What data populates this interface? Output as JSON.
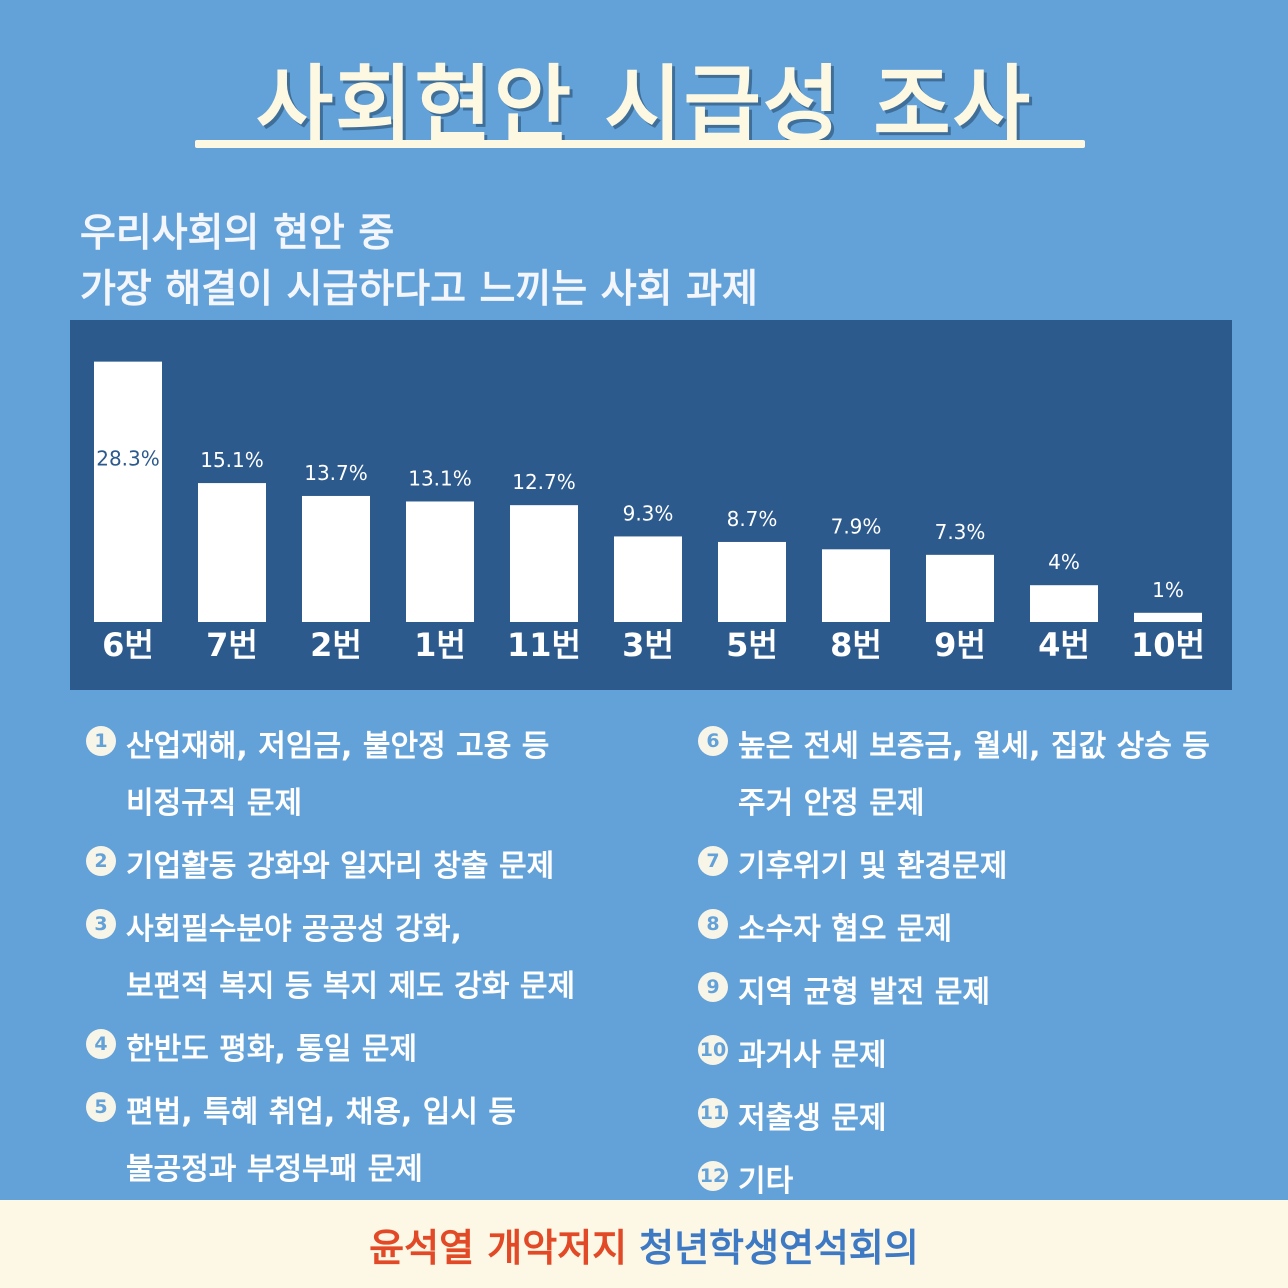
{
  "title": "사회현안 시급성 조사",
  "subtitle": {
    "line1": "우리사회의 현안 중",
    "line2": "가장 해결이 시급하다고 느끼는 사회 과제"
  },
  "colors": {
    "panel": "#63a1d9",
    "chart_bg": "#2d5a8c",
    "bar": "#ffffff",
    "footer_bg": "#fdf8e6",
    "footer_red": "#e24a27",
    "footer_blue": "#3e79c4"
  },
  "chart_data": {
    "type": "bar",
    "categories": [
      "6번",
      "7번",
      "2번",
      "1번",
      "11번",
      "3번",
      "5번",
      "8번",
      "9번",
      "4번",
      "10번"
    ],
    "values": [
      28.3,
      15.1,
      13.7,
      13.1,
      12.7,
      9.3,
      8.7,
      7.9,
      7.3,
      4,
      1
    ],
    "value_labels": [
      "28.3%",
      "15.1%",
      "13.7%",
      "13.1%",
      "12.7%",
      "9.3%",
      "8.7%",
      "7.9%",
      "7.3%",
      "4%",
      "1%"
    ],
    "ylim": [
      0,
      30
    ],
    "grid": false
  },
  "legend": {
    "left": [
      {
        "num": "1",
        "lines": [
          "산업재해, 저임금, 불안정 고용 등",
          "비정규직 문제"
        ]
      },
      {
        "num": "2",
        "lines": [
          "기업활동 강화와 일자리 창출 문제"
        ]
      },
      {
        "num": "3",
        "lines": [
          "사회필수분야 공공성 강화,",
          "보편적 복지 등 복지 제도 강화 문제"
        ]
      },
      {
        "num": "4",
        "lines": [
          "한반도 평화, 통일 문제"
        ]
      },
      {
        "num": "5",
        "lines": [
          "편법, 특혜 취업, 채용, 입시 등",
          "불공정과 부정부패 문제"
        ]
      }
    ],
    "right": [
      {
        "num": "6",
        "lines": [
          "높은 전세 보증금, 월세, 집값 상승 등",
          "주거 안정 문제"
        ]
      },
      {
        "num": "7",
        "lines": [
          "기후위기 및 환경문제"
        ]
      },
      {
        "num": "8",
        "lines": [
          "소수자 혐오 문제"
        ]
      },
      {
        "num": "9",
        "lines": [
          "지역 균형 발전 문제"
        ]
      },
      {
        "num": "10",
        "lines": [
          "과거사 문제"
        ]
      },
      {
        "num": "11",
        "lines": [
          "저출생 문제"
        ]
      },
      {
        "num": "12",
        "lines": [
          "기타"
        ]
      }
    ]
  },
  "footer": {
    "red": "윤석열 개악저지",
    "blue": "청년학생연석회의"
  }
}
